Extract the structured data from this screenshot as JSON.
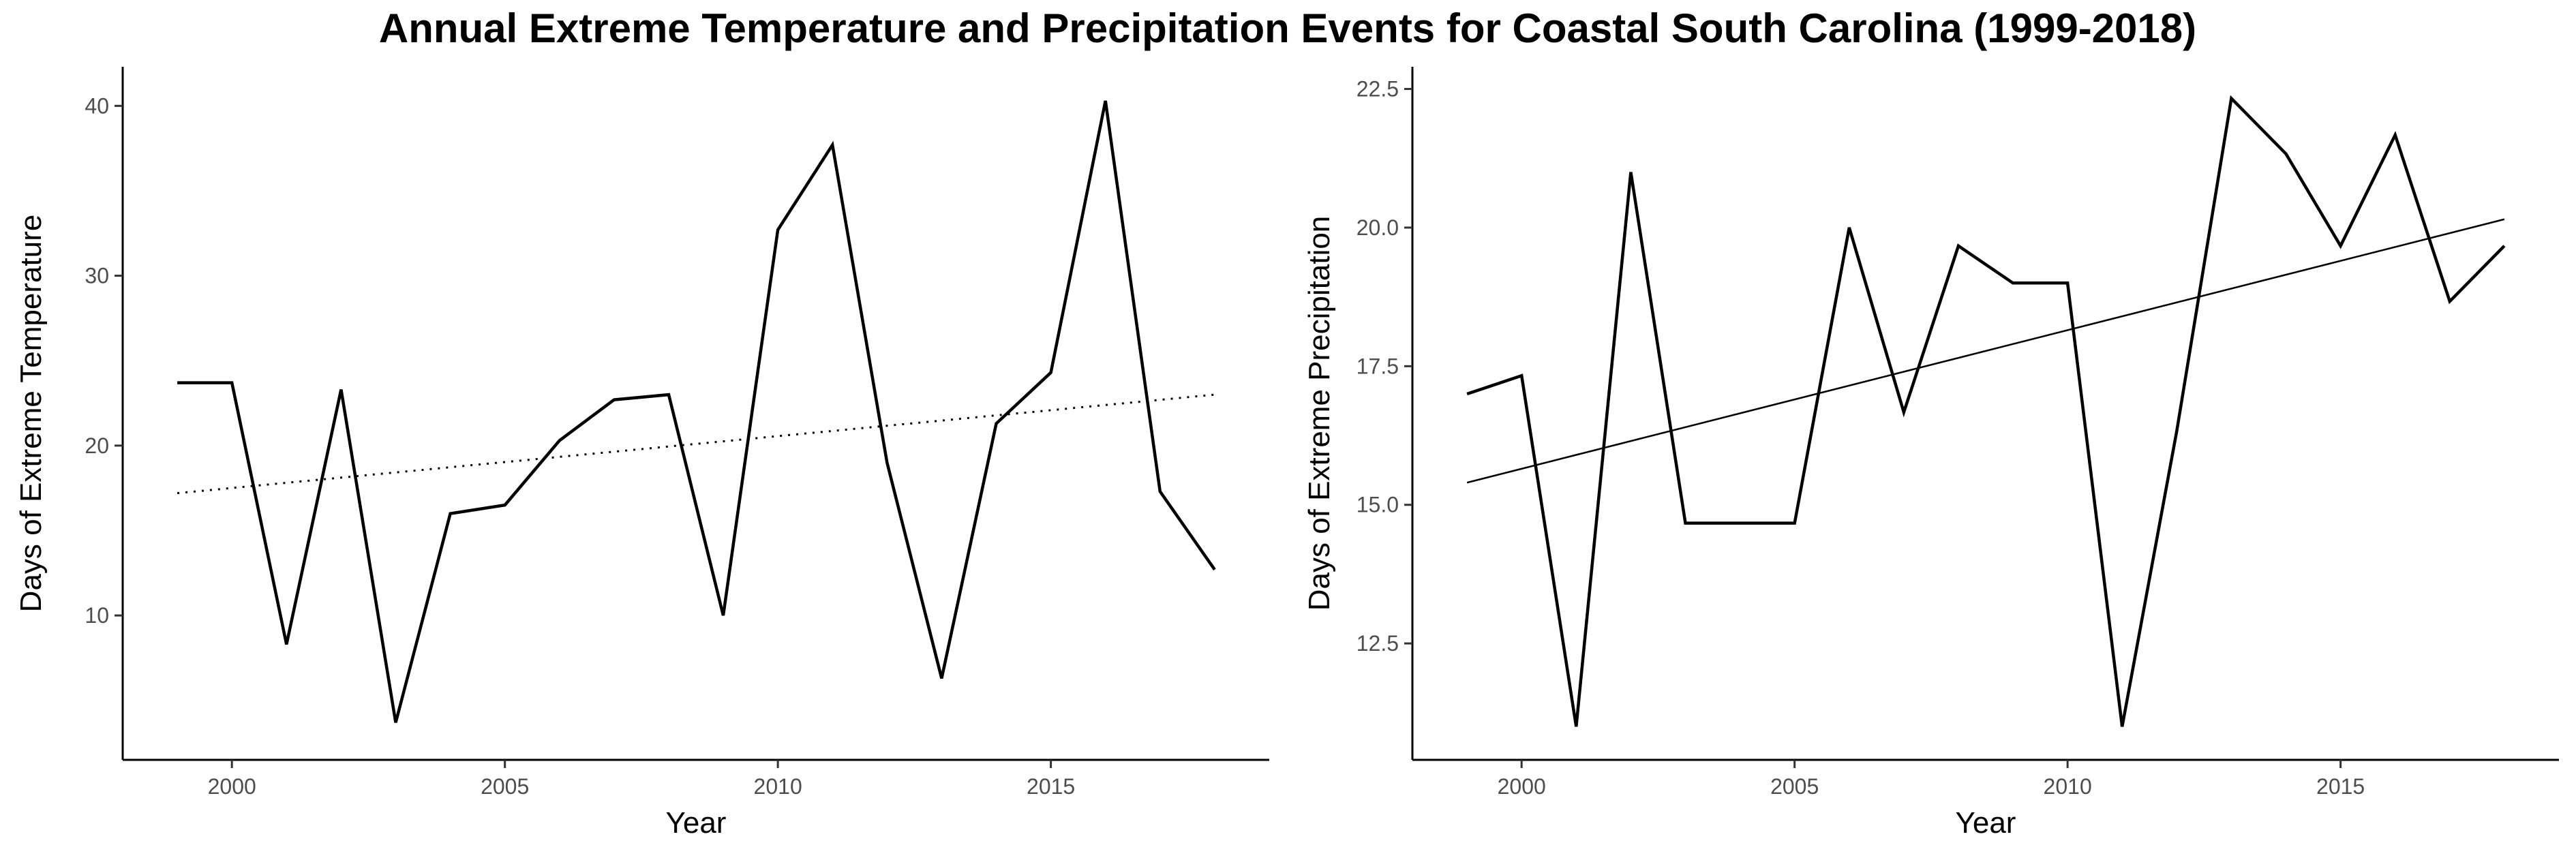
{
  "figure": {
    "title": "Annual Extreme Temperature and Precipitation Events for Coastal South Carolina (1999-2018)"
  },
  "chart_data": [
    {
      "type": "line",
      "title": "",
      "xlabel": "Year",
      "ylabel": "Days of Extreme Temperature",
      "xlim": [
        1998,
        2019
      ],
      "ylim": [
        1.5,
        42.3
      ],
      "xticks": [
        2000,
        2005,
        2010,
        2015
      ],
      "yticks": [
        10,
        20,
        30,
        40
      ],
      "grid": false,
      "x": [
        1999,
        2000,
        2001,
        2002,
        2003,
        2004,
        2005,
        2006,
        2007,
        2008,
        2009,
        2010,
        2011,
        2012,
        2013,
        2014,
        2015,
        2016,
        2017,
        2018
      ],
      "series": [
        {
          "values": [
            23.7,
            23.7,
            8.3,
            23.3,
            3.7,
            16.0,
            16.5,
            20.3,
            22.7,
            23.0,
            10.0,
            32.7,
            37.7,
            19.0,
            6.3,
            21.3,
            24.3,
            40.3,
            17.3,
            12.7
          ]
        }
      ],
      "trend": {
        "style": "dotted",
        "x": [
          1999,
          2018
        ],
        "y": [
          17.2,
          23.0
        ]
      }
    },
    {
      "type": "line",
      "title": "",
      "xlabel": "Year",
      "ylabel": "Days of Extreme Precipitation",
      "xlim": [
        1998,
        2019
      ],
      "ylim": [
        10.4,
        22.9
      ],
      "xticks": [
        2000,
        2005,
        2010,
        2015
      ],
      "yticks": [
        12.5,
        15.0,
        17.5,
        20.0,
        22.5
      ],
      "grid": false,
      "x": [
        1999,
        2000,
        2001,
        2002,
        2003,
        2004,
        2005,
        2006,
        2007,
        2008,
        2009,
        2010,
        2011,
        2012,
        2013,
        2014,
        2015,
        2016,
        2017,
        2018
      ],
      "series": [
        {
          "values": [
            17.0,
            17.33,
            11.0,
            21.0,
            14.67,
            14.67,
            14.67,
            20.0,
            16.67,
            19.67,
            19.0,
            19.0,
            11.0,
            16.33,
            22.33,
            21.33,
            19.67,
            21.67,
            18.67,
            19.67
          ]
        }
      ],
      "trend": {
        "style": "solid",
        "x": [
          1999,
          2018
        ],
        "y": [
          15.4,
          20.15
        ]
      }
    }
  ]
}
